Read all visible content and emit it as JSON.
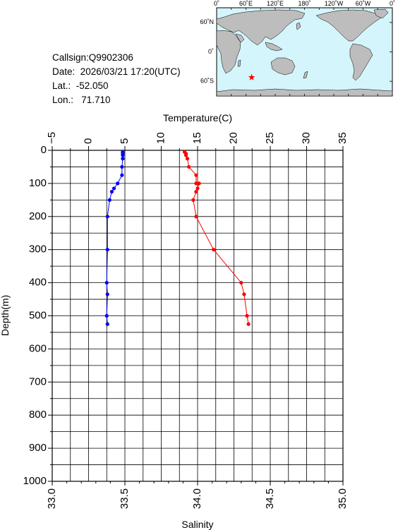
{
  "info": {
    "callsign": "Callsign:Q9902306",
    "date": "Date:  2026/03/21 17:20(UTC)",
    "lat": "Lat.:  -52.050",
    "lon": "Lon.:   71.710"
  },
  "map": {
    "top_labels": [
      "0˚",
      "60˚E",
      "120˚E",
      "180˚",
      "120˚W",
      "60˚W",
      "0˚"
    ],
    "right_labels": [
      "60˚N",
      "0˚",
      "60˚S"
    ],
    "marker_lon": 71.71,
    "marker_lat": -52.05,
    "colors": {
      "ocean": "#d4f5fb",
      "land": "#bdbdbd",
      "marker": "#ff0000"
    }
  },
  "chart_data": {
    "type": "line",
    "ylabel": "Depth(m)",
    "ylim": [
      0,
      1000
    ],
    "y_ticks": [
      "0",
      "100",
      "200",
      "300",
      "400",
      "500",
      "600",
      "700",
      "800",
      "900",
      "1000"
    ],
    "temperature_axis": {
      "label": "Temperature(C)",
      "range": [
        -5,
        35
      ],
      "ticks": [
        "−5",
        "0",
        "5",
        "10",
        "15",
        "20",
        "25",
        "30",
        "35"
      ]
    },
    "salinity_axis": {
      "label": "Salinity",
      "range": [
        33.0,
        35.0
      ],
      "ticks": [
        "33.0",
        "33.5",
        "34.0",
        "34.5",
        "35.0"
      ]
    },
    "grid": true,
    "series": [
      {
        "axis": "temperature",
        "color": "#0000ff",
        "points": [
          [
            4.7,
            5
          ],
          [
            4.7,
            10
          ],
          [
            4.7,
            15
          ],
          [
            4.7,
            25
          ],
          [
            4.6,
            50
          ],
          [
            4.6,
            75
          ],
          [
            4.0,
            100
          ],
          [
            3.5,
            115
          ],
          [
            3.2,
            125
          ],
          [
            2.9,
            150
          ],
          [
            2.6,
            200
          ],
          [
            2.6,
            300
          ],
          [
            2.5,
            400
          ],
          [
            2.6,
            435
          ],
          [
            2.5,
            500
          ],
          [
            2.6,
            525
          ]
        ]
      },
      {
        "axis": "salinity",
        "color": "#ff0000",
        "points": [
          [
            33.91,
            5
          ],
          [
            33.92,
            10
          ],
          [
            33.92,
            15
          ],
          [
            33.93,
            25
          ],
          [
            33.94,
            50
          ],
          [
            33.99,
            75
          ],
          [
            33.99,
            100
          ],
          [
            34.01,
            100
          ],
          [
            34.0,
            115
          ],
          [
            33.99,
            125
          ],
          [
            33.97,
            150
          ],
          [
            33.99,
            200
          ],
          [
            34.11,
            300
          ],
          [
            34.3,
            400
          ],
          [
            34.32,
            435
          ],
          [
            34.34,
            500
          ],
          [
            34.35,
            525
          ]
        ]
      }
    ]
  }
}
